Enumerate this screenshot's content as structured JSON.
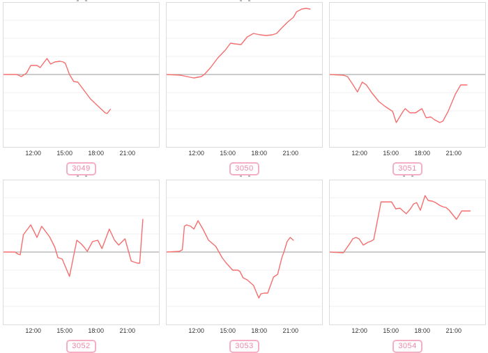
{
  "x_axis": {
    "ticks": [
      "12:00",
      "15:00",
      "18:00",
      "21:00"
    ],
    "tick_hours": [
      12,
      15,
      18,
      21
    ],
    "range_hours": [
      9.1,
      23.94
    ]
  },
  "style": {
    "line_color": "#f56e6e",
    "baseline_color": "#999999",
    "grid_color": "#efefef",
    "panel_border_color": "#dcdcdc",
    "tick_text_color": "#333333",
    "badge_border_color": "#f5afc4",
    "badge_text_color": "#ee87a7",
    "background": "#ffffff"
  },
  "chart_data": [
    {
      "type": "line",
      "title": "3049",
      "xlabel": "",
      "ylabel": "",
      "y_axis": "unlabeled relative units (baseline = 0, horizontal gray line)",
      "grid": "faint horizontal gridlines only",
      "legend": "none",
      "title_stub_visible": true,
      "points": [
        [
          9.1,
          0
        ],
        [
          10.4,
          0
        ],
        [
          10.8,
          -3
        ],
        [
          11.3,
          2
        ],
        [
          11.7,
          13
        ],
        [
          12.3,
          13
        ],
        [
          12.6,
          10
        ],
        [
          13.25,
          23
        ],
        [
          13.6,
          15
        ],
        [
          14.0,
          18
        ],
        [
          14.5,
          19
        ],
        [
          14.8,
          18
        ],
        [
          15.0,
          16
        ],
        [
          15.4,
          0
        ],
        [
          15.8,
          -10
        ],
        [
          16.2,
          -11
        ],
        [
          16.8,
          -23
        ],
        [
          17.4,
          -35
        ],
        [
          18.1,
          -45
        ],
        [
          18.8,
          -55
        ],
        [
          19.0,
          -56
        ],
        [
          19.3,
          -50
        ]
      ]
    },
    {
      "type": "line",
      "title": "3050",
      "xlabel": "",
      "ylabel": "",
      "y_axis": "unlabeled relative units (baseline = 0, horizontal gray line)",
      "grid": "faint horizontal gridlines only",
      "legend": "none",
      "title_stub_visible": true,
      "points": [
        [
          9.1,
          0
        ],
        [
          10.4,
          -1
        ],
        [
          11.7,
          -5
        ],
        [
          12.4,
          -3
        ],
        [
          12.7,
          0
        ],
        [
          13.3,
          10
        ],
        [
          14.0,
          24
        ],
        [
          14.7,
          35
        ],
        [
          15.2,
          45
        ],
        [
          15.6,
          44
        ],
        [
          16.2,
          43
        ],
        [
          16.8,
          54
        ],
        [
          17.4,
          59
        ],
        [
          18.0,
          57
        ],
        [
          18.6,
          56
        ],
        [
          19.2,
          57
        ],
        [
          19.6,
          59
        ],
        [
          20.1,
          67
        ],
        [
          20.7,
          76
        ],
        [
          21.2,
          82
        ],
        [
          21.5,
          90
        ],
        [
          22.0,
          94
        ],
        [
          22.4,
          95
        ],
        [
          22.8,
          94
        ]
      ]
    },
    {
      "type": "line",
      "title": "3051",
      "xlabel": "",
      "ylabel": "",
      "y_axis": "unlabeled relative units (baseline = 0, horizontal gray line)",
      "grid": "faint horizontal gridlines only",
      "legend": "none",
      "title_stub_visible": false,
      "points": [
        [
          9.1,
          0
        ],
        [
          10.4,
          -1
        ],
        [
          10.8,
          -3
        ],
        [
          11.2,
          -12
        ],
        [
          11.75,
          -25
        ],
        [
          12.2,
          -11
        ],
        [
          12.6,
          -15
        ],
        [
          13.1,
          -26
        ],
        [
          13.8,
          -39
        ],
        [
          14.4,
          -46
        ],
        [
          15.1,
          -53
        ],
        [
          15.45,
          -69
        ],
        [
          16.1,
          -53
        ],
        [
          16.3,
          -49
        ],
        [
          16.75,
          -55
        ],
        [
          17.3,
          -55
        ],
        [
          17.9,
          -49
        ],
        [
          18.3,
          -62
        ],
        [
          18.75,
          -61
        ],
        [
          19.1,
          -65
        ],
        [
          19.6,
          -69
        ],
        [
          19.9,
          -67
        ],
        [
          20.4,
          -53
        ],
        [
          21.1,
          -28
        ],
        [
          21.6,
          -15
        ],
        [
          22.2,
          -15
        ]
      ]
    },
    {
      "type": "line",
      "title": "3052",
      "xlabel": "",
      "ylabel": "",
      "y_axis": "unlabeled relative units (baseline = 0, horizontal gray line)",
      "grid": "faint horizontal gridlines only",
      "legend": "none",
      "title_stub_visible": true,
      "points": [
        [
          9.1,
          0
        ],
        [
          10.2,
          0
        ],
        [
          10.5,
          -3
        ],
        [
          10.7,
          -4
        ],
        [
          11.0,
          25
        ],
        [
          11.7,
          39
        ],
        [
          12.3,
          21
        ],
        [
          12.75,
          37
        ],
        [
          13.5,
          22
        ],
        [
          14.0,
          7
        ],
        [
          14.3,
          -8
        ],
        [
          14.7,
          -10
        ],
        [
          15.4,
          -35
        ],
        [
          16.1,
          17
        ],
        [
          16.5,
          12
        ],
        [
          16.8,
          7
        ],
        [
          17.1,
          1
        ],
        [
          17.6,
          15
        ],
        [
          18.1,
          17
        ],
        [
          18.5,
          5
        ],
        [
          19.2,
          33
        ],
        [
          19.7,
          17
        ],
        [
          20.1,
          10
        ],
        [
          20.7,
          19
        ],
        [
          21.3,
          -13
        ],
        [
          21.9,
          -16
        ],
        [
          22.1,
          -16
        ],
        [
          22.4,
          47
        ]
      ]
    },
    {
      "type": "line",
      "title": "3053",
      "xlabel": "",
      "ylabel": "",
      "y_axis": "unlabeled relative units (baseline = 0, horizontal gray line)",
      "grid": "faint horizontal gridlines only",
      "legend": "none",
      "title_stub_visible": true,
      "points": [
        [
          9.1,
          0
        ],
        [
          10.3,
          1
        ],
        [
          10.6,
          3
        ],
        [
          10.8,
          37
        ],
        [
          11.0,
          39
        ],
        [
          11.4,
          37
        ],
        [
          11.7,
          33
        ],
        [
          12.1,
          45
        ],
        [
          12.6,
          32
        ],
        [
          13.1,
          17
        ],
        [
          13.5,
          12
        ],
        [
          13.8,
          8
        ],
        [
          14.1,
          0
        ],
        [
          14.4,
          -8
        ],
        [
          14.75,
          -15
        ],
        [
          15.1,
          -21
        ],
        [
          15.4,
          -26
        ],
        [
          15.9,
          -26
        ],
        [
          16.1,
          -28
        ],
        [
          16.4,
          -37
        ],
        [
          16.8,
          -40
        ],
        [
          17.1,
          -44
        ],
        [
          17.4,
          -48
        ],
        [
          17.9,
          -66
        ],
        [
          18.1,
          -60
        ],
        [
          18.4,
          -59
        ],
        [
          18.75,
          -59
        ],
        [
          19.3,
          -36
        ],
        [
          19.7,
          -32
        ],
        [
          20.1,
          -8
        ],
        [
          20.3,
          0
        ],
        [
          20.6,
          15
        ],
        [
          20.9,
          21
        ],
        [
          21.2,
          17
        ]
      ]
    },
    {
      "type": "line",
      "title": "3054",
      "xlabel": "",
      "ylabel": "",
      "y_axis": "unlabeled relative units (baseline = 0, horizontal gray line)",
      "grid": "faint horizontal gridlines only",
      "legend": "none",
      "title_stub_visible": true,
      "points": [
        [
          9.1,
          0
        ],
        [
          10.4,
          -1
        ],
        [
          11.0,
          12
        ],
        [
          11.3,
          19
        ],
        [
          11.6,
          21
        ],
        [
          11.9,
          19
        ],
        [
          12.3,
          10
        ],
        [
          12.75,
          14
        ],
        [
          13.1,
          16
        ],
        [
          13.3,
          18
        ],
        [
          14.0,
          72
        ],
        [
          14.5,
          72
        ],
        [
          15.0,
          72
        ],
        [
          15.4,
          62
        ],
        [
          15.8,
          63
        ],
        [
          16.4,
          55
        ],
        [
          16.8,
          62
        ],
        [
          17.1,
          69
        ],
        [
          17.4,
          71
        ],
        [
          17.75,
          60
        ],
        [
          18.2,
          81
        ],
        [
          18.5,
          74
        ],
        [
          18.9,
          73
        ],
        [
          19.2,
          71
        ],
        [
          19.6,
          67
        ],
        [
          19.9,
          65
        ],
        [
          20.2,
          64
        ],
        [
          20.5,
          60
        ],
        [
          21.2,
          47
        ],
        [
          21.7,
          59
        ],
        [
          22.1,
          59
        ],
        [
          22.5,
          59
        ]
      ]
    }
  ]
}
